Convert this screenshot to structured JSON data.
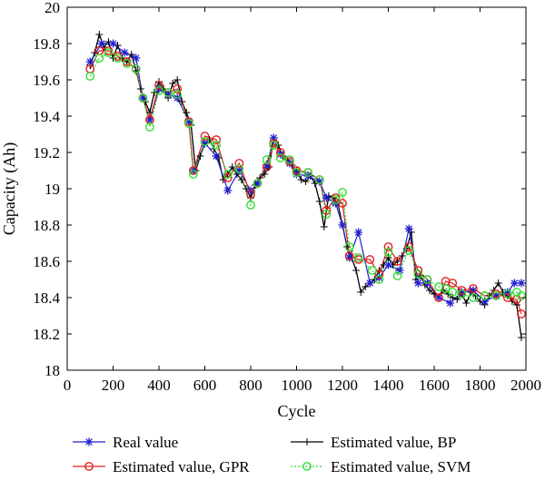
{
  "chart_data": {
    "type": "line",
    "xlabel": "Cycle",
    "ylabel": "Capacity (Ah)",
    "xlim": [
      0,
      2000
    ],
    "ylim": [
      18,
      20
    ],
    "xticks": [
      "0",
      "200",
      "400",
      "600",
      "800",
      "1000",
      "1200",
      "1400",
      "1600",
      "1800",
      "2000"
    ],
    "yticks": [
      "18",
      "18.2",
      "18.4",
      "18.6",
      "18.8",
      "19",
      "19.2",
      "19.4",
      "19.6",
      "19.8",
      "20"
    ],
    "grid": false,
    "legend_position": "bottom",
    "series": [
      {
        "name": "Real value",
        "color": "#1f1fd0",
        "marker": "star",
        "linestyle": "solid",
        "x": [
          100,
          150,
          200,
          250,
          300,
          330,
          360,
          400,
          440,
          480,
          530,
          550,
          600,
          650,
          700,
          750,
          800,
          830,
          870,
          900,
          930,
          970,
          1000,
          1050,
          1100,
          1130,
          1170,
          1200,
          1230,
          1270,
          1320,
          1360,
          1400,
          1450,
          1490,
          1530,
          1570,
          1620,
          1670,
          1720,
          1770,
          1820,
          1870,
          1920,
          1950,
          1980
        ],
        "y": [
          19.7,
          19.8,
          19.8,
          19.75,
          19.72,
          19.5,
          19.38,
          19.55,
          19.52,
          19.5,
          19.37,
          19.1,
          19.25,
          19.18,
          18.99,
          19.1,
          18.99,
          19.03,
          19.13,
          19.28,
          19.19,
          19.14,
          19.08,
          19.07,
          19.04,
          18.95,
          18.92,
          18.8,
          18.62,
          18.76,
          18.48,
          18.51,
          18.58,
          18.55,
          18.78,
          18.48,
          18.48,
          18.4,
          18.37,
          18.43,
          18.44,
          18.38,
          18.41,
          18.43,
          18.48,
          18.48
        ]
      },
      {
        "name": "Estimated value, GPR",
        "color": "#e02020",
        "marker": "circle",
        "linestyle": "solid",
        "x": [
          100,
          140,
          180,
          220,
          260,
          300,
          330,
          360,
          400,
          440,
          480,
          530,
          550,
          600,
          650,
          700,
          750,
          800,
          830,
          870,
          900,
          930,
          970,
          1000,
          1050,
          1100,
          1130,
          1170,
          1200,
          1230,
          1270,
          1320,
          1360,
          1400,
          1440,
          1490,
          1530,
          1570,
          1620,
          1650,
          1680,
          1720,
          1770,
          1820,
          1870,
          1920,
          1960,
          1980
        ],
        "y": [
          19.66,
          19.76,
          19.76,
          19.73,
          19.7,
          19.66,
          19.5,
          19.38,
          19.57,
          19.53,
          19.55,
          19.37,
          19.1,
          19.29,
          19.27,
          19.06,
          19.14,
          18.97,
          19.03,
          19.12,
          19.25,
          19.2,
          19.15,
          19.1,
          19.09,
          19.05,
          18.88,
          18.95,
          18.92,
          18.63,
          18.61,
          18.61,
          18.53,
          18.68,
          18.6,
          18.68,
          18.55,
          18.5,
          18.4,
          18.49,
          18.48,
          18.44,
          18.45,
          18.41,
          18.42,
          18.4,
          18.39,
          18.31
        ]
      },
      {
        "name": "Estimated value, BP",
        "color": "#000000",
        "marker": "plus",
        "linestyle": "solid",
        "x": [
          100,
          120,
          140,
          160,
          180,
          200,
          220,
          240,
          260,
          280,
          300,
          320,
          340,
          360,
          380,
          400,
          420,
          440,
          460,
          480,
          500,
          520,
          540,
          560,
          580,
          600,
          620,
          640,
          660,
          680,
          700,
          720,
          740,
          760,
          780,
          800,
          820,
          840,
          860,
          880,
          900,
          920,
          940,
          960,
          980,
          1000,
          1020,
          1040,
          1060,
          1080,
          1100,
          1120,
          1140,
          1160,
          1180,
          1200,
          1220,
          1240,
          1260,
          1280,
          1300,
          1320,
          1340,
          1360,
          1380,
          1400,
          1420,
          1440,
          1460,
          1480,
          1500,
          1520,
          1540,
          1560,
          1580,
          1600,
          1620,
          1640,
          1660,
          1680,
          1700,
          1720,
          1740,
          1760,
          1780,
          1800,
          1820,
          1840,
          1860,
          1880,
          1900,
          1920,
          1940,
          1960,
          1980
        ],
        "y": [
          19.68,
          19.75,
          19.85,
          19.78,
          19.81,
          19.72,
          19.79,
          19.72,
          19.7,
          19.74,
          19.65,
          19.55,
          19.48,
          19.42,
          19.53,
          19.59,
          19.55,
          19.5,
          19.58,
          19.6,
          19.48,
          19.42,
          19.35,
          19.1,
          19.18,
          19.25,
          19.27,
          19.22,
          19.17,
          19.05,
          19.08,
          19.12,
          19.08,
          19.05,
          19.0,
          18.95,
          19.02,
          19.06,
          19.08,
          19.12,
          19.27,
          19.24,
          19.18,
          19.16,
          19.13,
          19.1,
          19.05,
          19.04,
          19.07,
          19.03,
          18.93,
          18.79,
          18.96,
          18.95,
          18.92,
          18.8,
          18.68,
          18.62,
          18.55,
          18.43,
          18.46,
          18.48,
          18.5,
          18.55,
          18.58,
          18.62,
          18.58,
          18.6,
          18.63,
          18.67,
          18.76,
          18.5,
          18.52,
          18.47,
          18.44,
          18.42,
          18.4,
          18.44,
          18.42,
          18.4,
          18.39,
          18.42,
          18.37,
          18.43,
          18.41,
          18.38,
          18.36,
          18.41,
          18.44,
          18.48,
          18.43,
          18.41,
          18.38,
          18.36,
          18.18
        ]
      },
      {
        "name": "Estimated value, SVM",
        "color": "#33dd33",
        "marker": "circle",
        "linestyle": "dotted",
        "x": [
          100,
          140,
          180,
          220,
          260,
          300,
          330,
          360,
          400,
          440,
          480,
          530,
          550,
          600,
          650,
          700,
          750,
          800,
          830,
          870,
          900,
          930,
          970,
          1000,
          1050,
          1100,
          1130,
          1170,
          1200,
          1230,
          1270,
          1330,
          1360,
          1400,
          1440,
          1490,
          1530,
          1570,
          1620,
          1650,
          1680,
          1720,
          1770,
          1820,
          1870,
          1920,
          1960,
          1980
        ],
        "y": [
          19.62,
          19.72,
          19.75,
          19.72,
          19.69,
          19.66,
          19.5,
          19.34,
          19.54,
          19.53,
          19.52,
          19.36,
          19.08,
          19.26,
          19.24,
          19.08,
          19.11,
          18.91,
          19.03,
          19.16,
          19.24,
          19.17,
          19.16,
          19.09,
          19.09,
          19.05,
          18.86,
          18.94,
          18.98,
          18.68,
          18.62,
          18.55,
          18.5,
          18.65,
          18.52,
          18.66,
          18.53,
          18.5,
          18.46,
          18.45,
          18.43,
          18.42,
          18.4,
          18.41,
          18.41,
          18.42,
          18.43,
          18.41
        ]
      }
    ]
  }
}
